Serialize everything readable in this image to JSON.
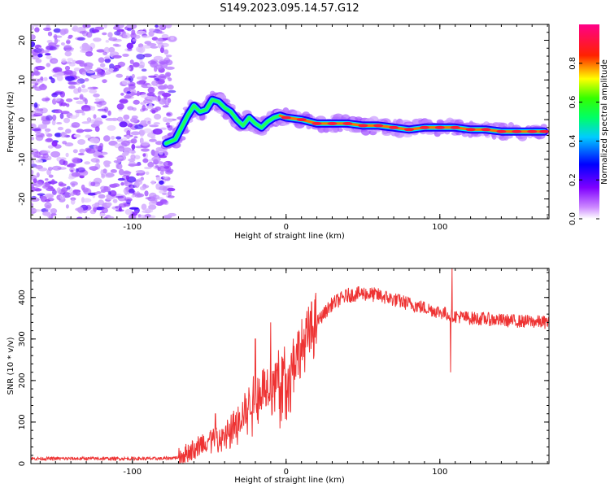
{
  "title": "S149.2023.095.14.57.G12",
  "chart_data": [
    {
      "type": "heatmap",
      "xlabel": "Height of straight line (km)",
      "ylabel": "Frequency (Hz)",
      "xlim": [
        -166,
        171
      ],
      "ylim": [
        -25,
        24
      ],
      "x_ticks": [
        -100,
        0,
        100
      ],
      "y_ticks": [
        -20,
        -10,
        0,
        10,
        20
      ],
      "colorbar": {
        "label": "Normalized spectral amplitude",
        "range": [
          0,
          1
        ],
        "ticks": [
          "0.0",
          "0.2",
          "0.4",
          "0.6",
          "0.8"
        ],
        "colors": [
          "#ffffff",
          "#7f00ff",
          "#0000ff",
          "#00ffff",
          "#00ff00",
          "#ffff00",
          "#ff0000",
          "#ff00aa"
        ]
      },
      "noise_region_x": [
        -166,
        -74
      ],
      "ridge": {
        "x": [
          -78,
          -72,
          -68,
          -64,
          -60,
          -56,
          -52,
          -48,
          -44,
          -40,
          -36,
          -32,
          -28,
          -24,
          -20,
          -16,
          -12,
          -8,
          -4,
          0,
          10,
          20,
          30,
          40,
          50,
          60,
          70,
          80,
          90,
          100,
          110,
          120,
          130,
          140,
          150,
          160,
          168
        ],
        "freq": [
          -6,
          -5,
          -2,
          1,
          3.5,
          2,
          2.5,
          5,
          4.5,
          3,
          2,
          0,
          -1.5,
          0.5,
          -1,
          -2,
          -0.5,
          0.5,
          1,
          0.5,
          0,
          -1,
          -1,
          -1,
          -1.5,
          -1.5,
          -2,
          -2.5,
          -2,
          -2,
          -2,
          -2.5,
          -2.5,
          -3,
          -3,
          -3,
          -3
        ],
        "amplitude": [
          0.25,
          0.4,
          0.5,
          0.5,
          0.45,
          0.6,
          0.55,
          0.55,
          0.6,
          0.5,
          0.45,
          0.5,
          0.45,
          0.5,
          0.45,
          0.4,
          0.5,
          0.55,
          0.7,
          0.8,
          0.8,
          0.85,
          0.85,
          0.8,
          0.8,
          0.85,
          0.85,
          0.85,
          0.85,
          0.85,
          0.85,
          0.85,
          0.85,
          0.85,
          0.85,
          0.85,
          0.85
        ]
      }
    },
    {
      "type": "line",
      "xlabel": "Height of straight line (km)",
      "ylabel": "SNR (10 * v/v)",
      "xlim": [
        -166,
        171
      ],
      "ylim": [
        0,
        470
      ],
      "x_ticks": [
        -100,
        0,
        100
      ],
      "y_ticks": [
        0,
        100,
        200,
        300,
        400
      ],
      "series_color": "#ee3333",
      "envelope": {
        "x": [
          -166,
          -130,
          -100,
          -80,
          -70,
          -60,
          -50,
          -40,
          -30,
          -20,
          -10,
          0,
          10,
          20,
          30,
          40,
          50,
          60,
          70,
          80,
          90,
          100,
          110,
          120,
          130,
          140,
          150,
          160,
          171
        ],
        "snr": [
          12,
          12,
          12,
          12,
          15,
          35,
          60,
          70,
          110,
          170,
          200,
          230,
          280,
          340,
          385,
          405,
          410,
          405,
          395,
          385,
          375,
          365,
          355,
          350,
          348,
          345,
          343,
          342,
          340
        ]
      },
      "spikes": [
        {
          "x": -46,
          "snr": 120
        },
        {
          "x": -20,
          "snr": 300
        },
        {
          "x": -10,
          "snr": 340
        },
        {
          "x": -4,
          "snr": 85
        },
        {
          "x": 108,
          "snr": 470
        },
        {
          "x": 107,
          "snr": 220
        }
      ]
    }
  ]
}
